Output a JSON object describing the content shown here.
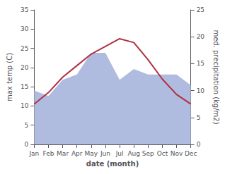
{
  "chart_data": {
    "type": "line",
    "xlabel": "date (month)",
    "ylabel": "max temp (C)",
    "y2label": "med. precipitation (kg/m2)",
    "categories": [
      "Jan",
      "Feb",
      "Mar",
      "Apr",
      "May",
      "Jun",
      "Jul",
      "Aug",
      "Sep",
      "Oct",
      "Nov",
      "Dec"
    ],
    "series": [
      {
        "type": "area",
        "axis": "y2",
        "color": "#b0bcdf",
        "values": [
          10,
          9,
          12,
          13,
          17,
          17,
          12,
          14,
          13,
          13,
          13,
          11
        ]
      },
      {
        "type": "line",
        "axis": "y",
        "color": "#b03040",
        "values": [
          10.5,
          13.5,
          17.5,
          20.5,
          23.5,
          25.5,
          27.5,
          26.5,
          22.0,
          17.0,
          13.0,
          10.5
        ]
      }
    ],
    "ylim": [
      0,
      35
    ],
    "yticks": [
      0,
      5,
      10,
      15,
      20,
      25,
      30,
      35
    ],
    "y2lim": [
      0,
      25
    ],
    "y2ticks": [
      0,
      5,
      10,
      15,
      20,
      25
    ],
    "grid": false
  }
}
